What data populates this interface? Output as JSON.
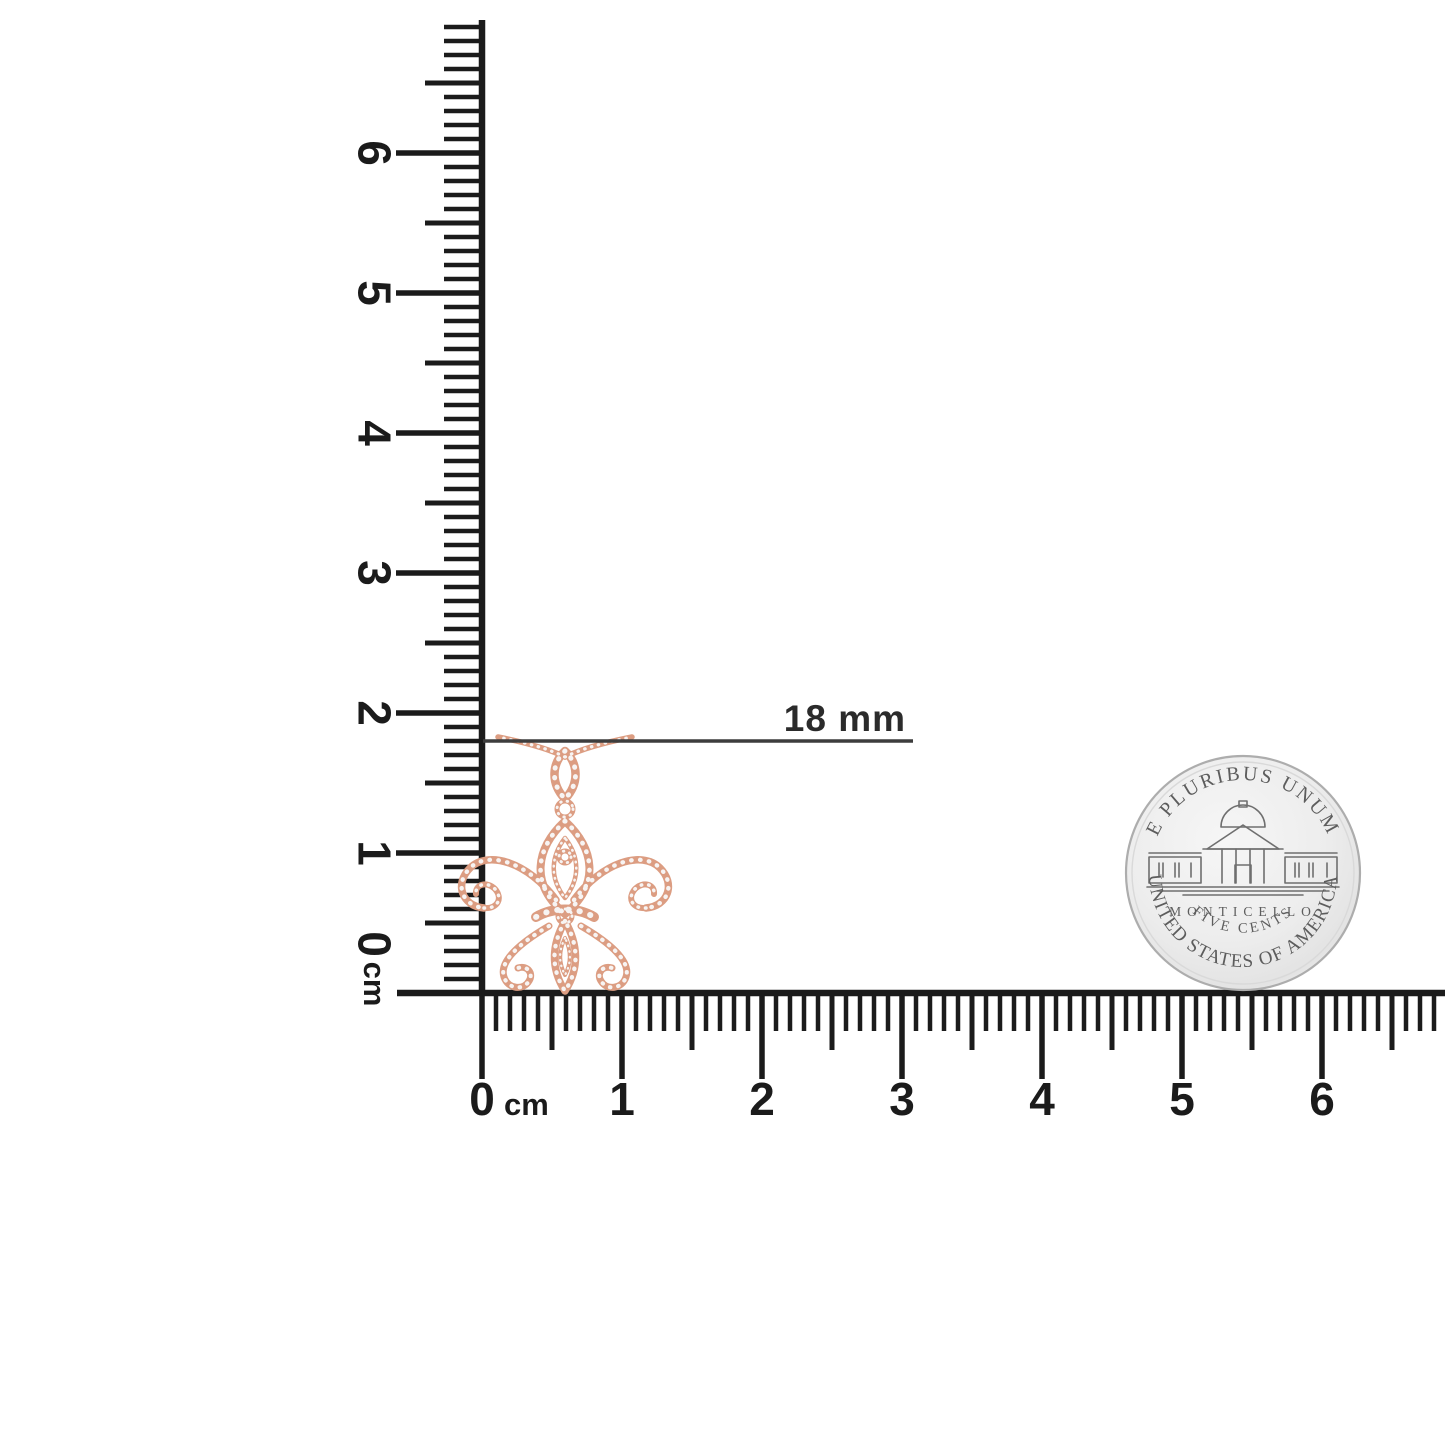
{
  "measurement": {
    "label": "18 mm"
  },
  "rulers": {
    "unit": "cm",
    "vertical": {
      "zero_label": "0",
      "unit_label": "cm",
      "labels": [
        "1",
        "2",
        "3",
        "4",
        "5",
        "6"
      ]
    },
    "horizontal": {
      "zero_label": "0",
      "unit_label": "cm",
      "labels": [
        "1",
        "2",
        "3",
        "4",
        "5",
        "6"
      ]
    }
  },
  "coin": {
    "kind": "us-nickel-reverse",
    "top_legend": "E PLURIBUS UNUM",
    "building_label": "MONTICELLO",
    "denomination": "FIVE CENTS",
    "bottom_legend": "UNITED STATES OF AMERICA"
  },
  "pendant": {
    "kind": "fleur-de-lis-diamond-pendant",
    "metal": "#dc9d82",
    "stones": "#f7f4f3"
  },
  "colors": {
    "ruler_ink": "#1b1b1b",
    "measure_line": "#3d3d3d",
    "measure_text": "#2b2b2b",
    "coin_lettering": "#5d5d5d",
    "coin_field": "#ededed",
    "coin_rim": "#b0b0b0"
  }
}
